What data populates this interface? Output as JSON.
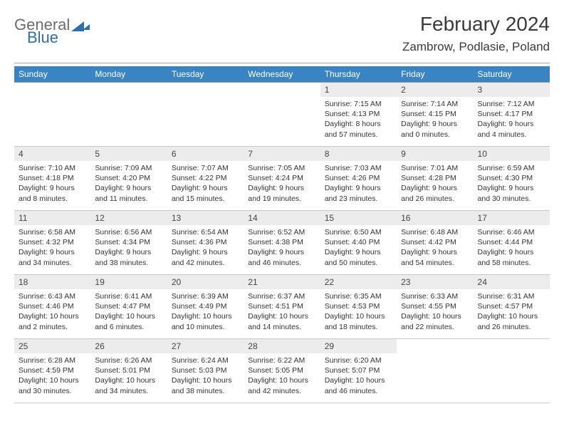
{
  "logo": {
    "part1": "General",
    "part2": "Blue"
  },
  "title": {
    "month": "February 2024",
    "location": "Zambrow, Podlasie, Poland"
  },
  "colors": {
    "header_bg": "#3a84c4",
    "header_text": "#ffffff",
    "daynum_bg": "#ececec",
    "divider": "#8a98a6",
    "logo_gray": "#6b6b6b",
    "logo_blue": "#2f6fa9"
  },
  "dayHeaders": [
    "Sunday",
    "Monday",
    "Tuesday",
    "Wednesday",
    "Thursday",
    "Friday",
    "Saturday"
  ],
  "weeks": [
    [
      {
        "n": "",
        "sunrise": "",
        "sunset": "",
        "daylight": ""
      },
      {
        "n": "",
        "sunrise": "",
        "sunset": "",
        "daylight": ""
      },
      {
        "n": "",
        "sunrise": "",
        "sunset": "",
        "daylight": ""
      },
      {
        "n": "",
        "sunrise": "",
        "sunset": "",
        "daylight": ""
      },
      {
        "n": "1",
        "sunrise": "Sunrise: 7:15 AM",
        "sunset": "Sunset: 4:13 PM",
        "daylight": "Daylight: 8 hours and 57 minutes."
      },
      {
        "n": "2",
        "sunrise": "Sunrise: 7:14 AM",
        "sunset": "Sunset: 4:15 PM",
        "daylight": "Daylight: 9 hours and 0 minutes."
      },
      {
        "n": "3",
        "sunrise": "Sunrise: 7:12 AM",
        "sunset": "Sunset: 4:17 PM",
        "daylight": "Daylight: 9 hours and 4 minutes."
      }
    ],
    [
      {
        "n": "4",
        "sunrise": "Sunrise: 7:10 AM",
        "sunset": "Sunset: 4:18 PM",
        "daylight": "Daylight: 9 hours and 8 minutes."
      },
      {
        "n": "5",
        "sunrise": "Sunrise: 7:09 AM",
        "sunset": "Sunset: 4:20 PM",
        "daylight": "Daylight: 9 hours and 11 minutes."
      },
      {
        "n": "6",
        "sunrise": "Sunrise: 7:07 AM",
        "sunset": "Sunset: 4:22 PM",
        "daylight": "Daylight: 9 hours and 15 minutes."
      },
      {
        "n": "7",
        "sunrise": "Sunrise: 7:05 AM",
        "sunset": "Sunset: 4:24 PM",
        "daylight": "Daylight: 9 hours and 19 minutes."
      },
      {
        "n": "8",
        "sunrise": "Sunrise: 7:03 AM",
        "sunset": "Sunset: 4:26 PM",
        "daylight": "Daylight: 9 hours and 23 minutes."
      },
      {
        "n": "9",
        "sunrise": "Sunrise: 7:01 AM",
        "sunset": "Sunset: 4:28 PM",
        "daylight": "Daylight: 9 hours and 26 minutes."
      },
      {
        "n": "10",
        "sunrise": "Sunrise: 6:59 AM",
        "sunset": "Sunset: 4:30 PM",
        "daylight": "Daylight: 9 hours and 30 minutes."
      }
    ],
    [
      {
        "n": "11",
        "sunrise": "Sunrise: 6:58 AM",
        "sunset": "Sunset: 4:32 PM",
        "daylight": "Daylight: 9 hours and 34 minutes."
      },
      {
        "n": "12",
        "sunrise": "Sunrise: 6:56 AM",
        "sunset": "Sunset: 4:34 PM",
        "daylight": "Daylight: 9 hours and 38 minutes."
      },
      {
        "n": "13",
        "sunrise": "Sunrise: 6:54 AM",
        "sunset": "Sunset: 4:36 PM",
        "daylight": "Daylight: 9 hours and 42 minutes."
      },
      {
        "n": "14",
        "sunrise": "Sunrise: 6:52 AM",
        "sunset": "Sunset: 4:38 PM",
        "daylight": "Daylight: 9 hours and 46 minutes."
      },
      {
        "n": "15",
        "sunrise": "Sunrise: 6:50 AM",
        "sunset": "Sunset: 4:40 PM",
        "daylight": "Daylight: 9 hours and 50 minutes."
      },
      {
        "n": "16",
        "sunrise": "Sunrise: 6:48 AM",
        "sunset": "Sunset: 4:42 PM",
        "daylight": "Daylight: 9 hours and 54 minutes."
      },
      {
        "n": "17",
        "sunrise": "Sunrise: 6:46 AM",
        "sunset": "Sunset: 4:44 PM",
        "daylight": "Daylight: 9 hours and 58 minutes."
      }
    ],
    [
      {
        "n": "18",
        "sunrise": "Sunrise: 6:43 AM",
        "sunset": "Sunset: 4:46 PM",
        "daylight": "Daylight: 10 hours and 2 minutes."
      },
      {
        "n": "19",
        "sunrise": "Sunrise: 6:41 AM",
        "sunset": "Sunset: 4:47 PM",
        "daylight": "Daylight: 10 hours and 6 minutes."
      },
      {
        "n": "20",
        "sunrise": "Sunrise: 6:39 AM",
        "sunset": "Sunset: 4:49 PM",
        "daylight": "Daylight: 10 hours and 10 minutes."
      },
      {
        "n": "21",
        "sunrise": "Sunrise: 6:37 AM",
        "sunset": "Sunset: 4:51 PM",
        "daylight": "Daylight: 10 hours and 14 minutes."
      },
      {
        "n": "22",
        "sunrise": "Sunrise: 6:35 AM",
        "sunset": "Sunset: 4:53 PM",
        "daylight": "Daylight: 10 hours and 18 minutes."
      },
      {
        "n": "23",
        "sunrise": "Sunrise: 6:33 AM",
        "sunset": "Sunset: 4:55 PM",
        "daylight": "Daylight: 10 hours and 22 minutes."
      },
      {
        "n": "24",
        "sunrise": "Sunrise: 6:31 AM",
        "sunset": "Sunset: 4:57 PM",
        "daylight": "Daylight: 10 hours and 26 minutes."
      }
    ],
    [
      {
        "n": "25",
        "sunrise": "Sunrise: 6:28 AM",
        "sunset": "Sunset: 4:59 PM",
        "daylight": "Daylight: 10 hours and 30 minutes."
      },
      {
        "n": "26",
        "sunrise": "Sunrise: 6:26 AM",
        "sunset": "Sunset: 5:01 PM",
        "daylight": "Daylight: 10 hours and 34 minutes."
      },
      {
        "n": "27",
        "sunrise": "Sunrise: 6:24 AM",
        "sunset": "Sunset: 5:03 PM",
        "daylight": "Daylight: 10 hours and 38 minutes."
      },
      {
        "n": "28",
        "sunrise": "Sunrise: 6:22 AM",
        "sunset": "Sunset: 5:05 PM",
        "daylight": "Daylight: 10 hours and 42 minutes."
      },
      {
        "n": "29",
        "sunrise": "Sunrise: 6:20 AM",
        "sunset": "Sunset: 5:07 PM",
        "daylight": "Daylight: 10 hours and 46 minutes."
      },
      {
        "n": "",
        "sunrise": "",
        "sunset": "",
        "daylight": ""
      },
      {
        "n": "",
        "sunrise": "",
        "sunset": "",
        "daylight": ""
      }
    ]
  ]
}
